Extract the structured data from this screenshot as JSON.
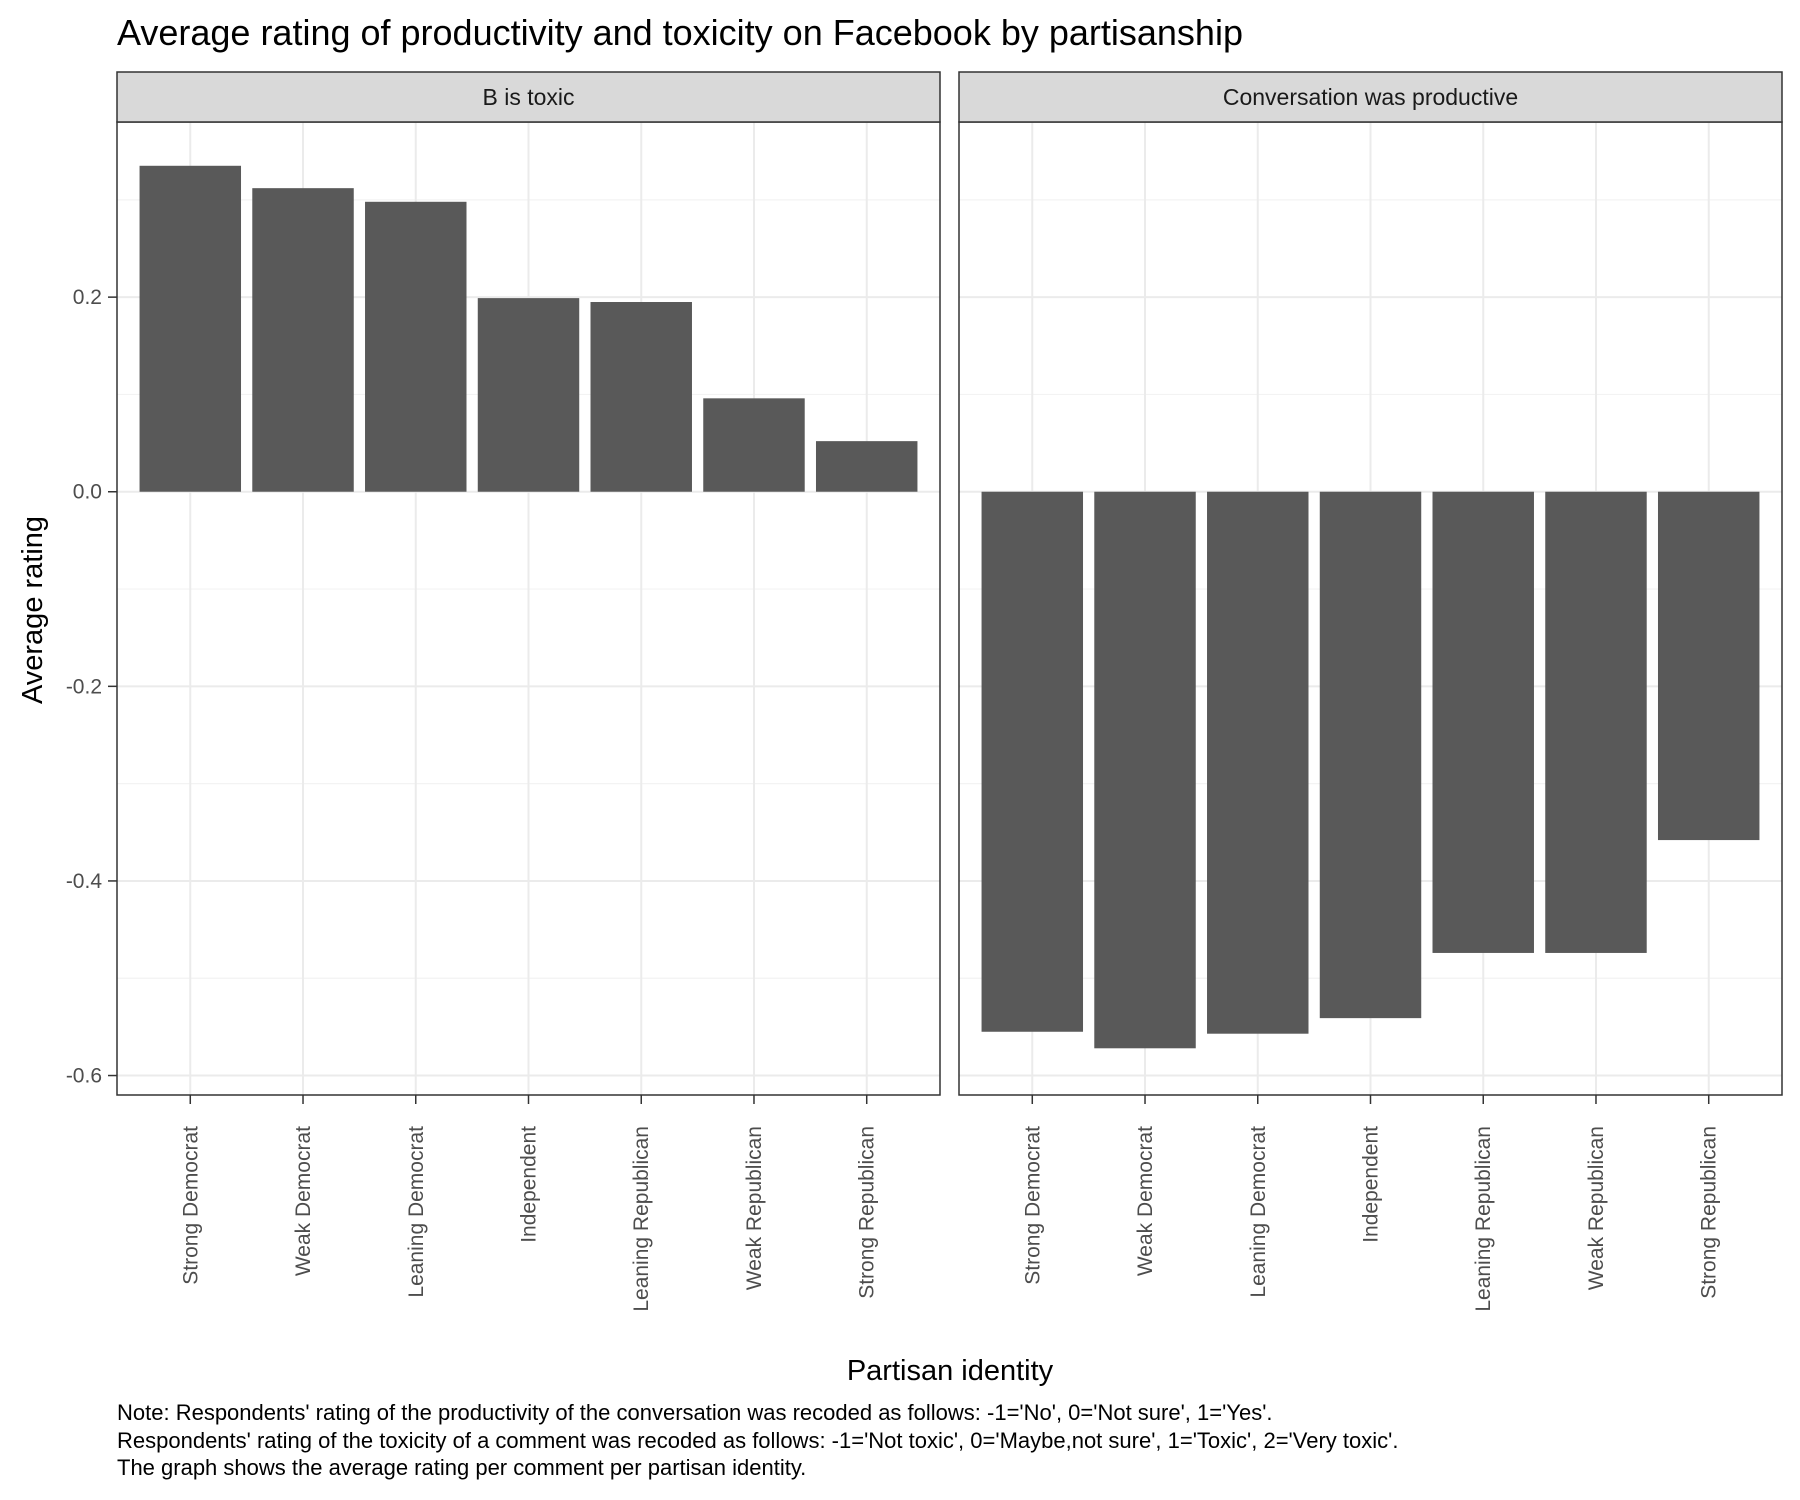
{
  "chart_data": {
    "type": "bar",
    "title": "Average rating of productivity and toxicity on Facebook by partisanship",
    "xlabel": "Partisan identity",
    "ylabel": "Average rating",
    "ylim": [
      -0.62,
      0.38
    ],
    "y_ticks": [
      0.2,
      0.0,
      -0.2,
      -0.4,
      -0.6
    ],
    "y_tick_labels": [
      "0.2",
      "0.0",
      "-0.2",
      "-0.4",
      "-0.6"
    ],
    "categories": [
      "Strong Democrat",
      "Weak Democrat",
      "Leaning Democrat",
      "Independent",
      "Leaning Republican",
      "Weak Republican",
      "Strong Republican"
    ],
    "bar_color": "#595959",
    "grid": true,
    "facets": [
      {
        "label": "B is toxic",
        "values": [
          0.335,
          0.312,
          0.298,
          0.199,
          0.195,
          0.096,
          0.052
        ]
      },
      {
        "label": "Conversation was productive",
        "values": [
          -0.555,
          -0.572,
          -0.557,
          -0.541,
          -0.474,
          -0.474,
          -0.358
        ]
      }
    ],
    "note": [
      "Note: Respondents' rating of the productivity of the conversation was recoded as follows: -1='No', 0='Not sure', 1='Yes'.",
      "Respondents' rating of the toxicity of a comment was recoded as follows: -1='Not toxic', 0='Maybe,not sure', 1='Toxic', 2='Very toxic'.",
      "The graph shows the average rating per comment per partisan identity."
    ]
  }
}
